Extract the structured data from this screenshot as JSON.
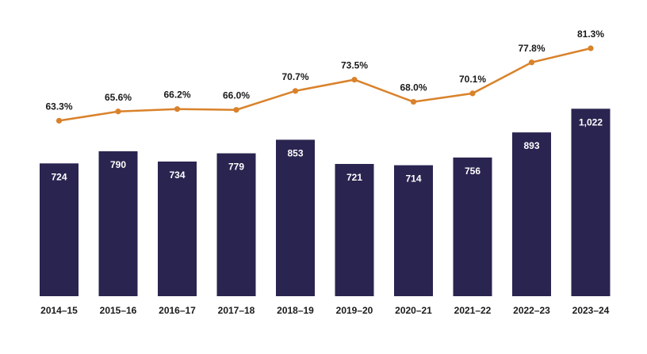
{
  "chart_data": {
    "type": "bar",
    "categories": [
      "2014–15",
      "2015–16",
      "2016–17",
      "2017–18",
      "2018–19",
      "2019–20",
      "2020–21",
      "2021–22",
      "2022–23",
      "2023–24"
    ],
    "series": [
      {
        "type": "bar",
        "values": [
          724,
          790,
          734,
          779,
          853,
          721,
          714,
          756,
          893,
          1022
        ],
        "labels": [
          "724",
          "790",
          "734",
          "779",
          "853",
          "721",
          "714",
          "756",
          "893",
          "1,022"
        ],
        "color": "#2a2450"
      },
      {
        "type": "line",
        "values": [
          63.3,
          65.6,
          66.2,
          66.0,
          70.7,
          73.5,
          68.0,
          70.1,
          77.8,
          81.3
        ],
        "labels": [
          "63.3%",
          "65.6%",
          "66.2%",
          "66.0%",
          "70.7%",
          "73.5%",
          "68.0%",
          "70.1%",
          "77.8%",
          "81.3%"
        ],
        "color": "#d9822b"
      }
    ],
    "title": "",
    "xlabel": "",
    "ylabel": "",
    "grid": false,
    "legend": "none"
  }
}
